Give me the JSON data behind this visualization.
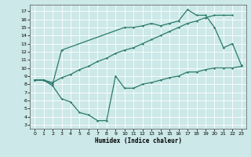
{
  "bg_color": "#cce8e8",
  "grid_color": "#ffffff",
  "line_color": "#2a7a6a",
  "xlabel": "Humidex (Indice chaleur)",
  "xlim": [
    -0.5,
    23.5
  ],
  "ylim": [
    2.5,
    17.8
  ],
  "xticks": [
    0,
    1,
    2,
    3,
    4,
    5,
    6,
    7,
    8,
    9,
    10,
    11,
    12,
    13,
    14,
    15,
    16,
    17,
    18,
    19,
    20,
    21,
    22,
    23
  ],
  "yticks": [
    3,
    4,
    5,
    6,
    7,
    8,
    9,
    10,
    11,
    12,
    13,
    14,
    15,
    16,
    17
  ],
  "line1_x": [
    0,
    1,
    2,
    3,
    4,
    5,
    6,
    7,
    8,
    9,
    10,
    11,
    12,
    13,
    14,
    15,
    16,
    17,
    18,
    19,
    20,
    21,
    22
  ],
  "line1_y": [
    8.5,
    8.5,
    8.2,
    8.8,
    9.2,
    9.8,
    10.2,
    10.8,
    11.2,
    11.8,
    12.2,
    12.5,
    13.0,
    13.5,
    14.0,
    14.5,
    15.0,
    15.5,
    15.8,
    16.2,
    16.5,
    16.5,
    16.5
  ],
  "line2_x": [
    0,
    1,
    2,
    3,
    10,
    11,
    12,
    13,
    14,
    15,
    16,
    17,
    18,
    19,
    20,
    21,
    22,
    23
  ],
  "line2_y": [
    8.5,
    8.5,
    8.0,
    12.2,
    15.0,
    15.0,
    15.2,
    15.5,
    15.2,
    15.5,
    15.8,
    17.2,
    16.5,
    16.5,
    15.0,
    12.5,
    13.0,
    10.3
  ],
  "line3_x": [
    0,
    1,
    2,
    3,
    4,
    5,
    6,
    7,
    8,
    9,
    10,
    11,
    12,
    13,
    14,
    15,
    16,
    17,
    18,
    19,
    20,
    21,
    22,
    23
  ],
  "line3_y": [
    8.5,
    8.5,
    7.8,
    6.2,
    5.8,
    4.5,
    4.2,
    3.5,
    3.5,
    9.0,
    7.5,
    7.5,
    8.0,
    8.2,
    8.5,
    8.8,
    9.0,
    9.5,
    9.5,
    9.8,
    10.0,
    10.0,
    10.0,
    10.2
  ]
}
